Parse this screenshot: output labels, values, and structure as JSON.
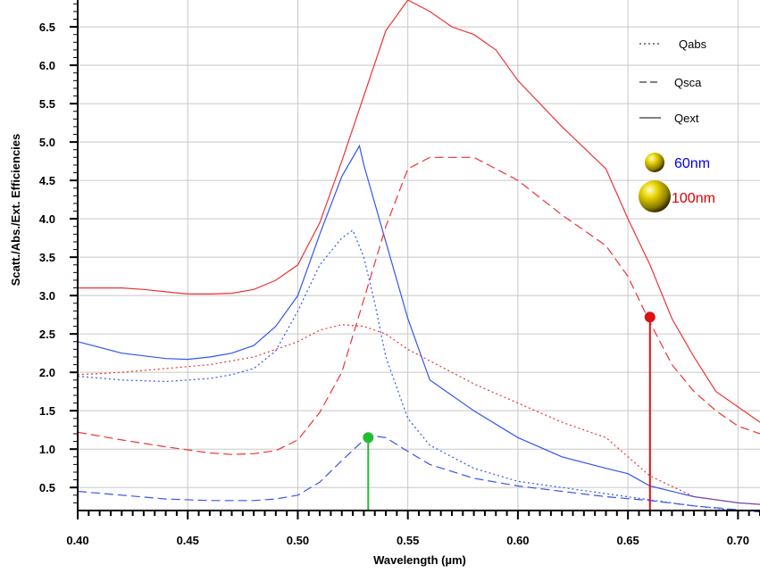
{
  "chart_data": {
    "type": "line",
    "title": "",
    "xlabel": "Wavelength (µm)",
    "ylabel": "Scatt./Abs./Ext. Efficiencies",
    "xlim": [
      0.4,
      0.71
    ],
    "ylim": [
      0.2,
      6.85
    ],
    "x_ticks": [
      "0.40",
      "0.45",
      "0.50",
      "0.55",
      "0.60",
      "0.65",
      "0.70"
    ],
    "y_ticks": [
      "0.5",
      "1.0",
      "1.5",
      "2.0",
      "2.5",
      "3.0",
      "3.5",
      "4.0",
      "4.5",
      "5.0",
      "5.5",
      "6.0",
      "6.5"
    ],
    "grid": true,
    "legend": {
      "position": "top-right",
      "line_entries": [
        {
          "label": "Qabs",
          "style": "dotted"
        },
        {
          "label": "Qsca",
          "style": "dashed"
        },
        {
          "label": "Qext",
          "style": "solid"
        }
      ],
      "size_entries": [
        {
          "label": "60nm",
          "color": "#0000ee"
        },
        {
          "label": "100nm",
          "color": "#dd0000"
        }
      ]
    },
    "series": [
      {
        "name": "Qabs",
        "size": "60nm",
        "color": "#3355ee",
        "style": "dotted",
        "x": [
          0.4,
          0.42,
          0.44,
          0.46,
          0.47,
          0.48,
          0.49,
          0.5,
          0.51,
          0.52,
          0.525,
          0.53,
          0.535,
          0.54,
          0.55,
          0.56,
          0.58,
          0.6,
          0.62,
          0.64,
          0.66,
          0.68,
          0.7,
          0.71
        ],
        "y": [
          1.95,
          1.9,
          1.88,
          1.92,
          1.97,
          2.05,
          2.28,
          2.8,
          3.4,
          3.75,
          3.85,
          3.5,
          2.9,
          2.2,
          1.4,
          1.05,
          0.75,
          0.58,
          0.5,
          0.42,
          0.34,
          0.26,
          0.2,
          0.19
        ]
      },
      {
        "name": "Qsca",
        "size": "60nm",
        "color": "#3355ee",
        "style": "dashed",
        "x": [
          0.4,
          0.42,
          0.44,
          0.46,
          0.47,
          0.48,
          0.49,
          0.5,
          0.51,
          0.52,
          0.53,
          0.535,
          0.54,
          0.55,
          0.56,
          0.58,
          0.6,
          0.62,
          0.64,
          0.66,
          0.68,
          0.7,
          0.71
        ],
        "y": [
          0.45,
          0.4,
          0.35,
          0.33,
          0.33,
          0.33,
          0.35,
          0.4,
          0.57,
          0.85,
          1.12,
          1.17,
          1.15,
          0.97,
          0.8,
          0.62,
          0.52,
          0.45,
          0.38,
          0.33,
          0.26,
          0.21,
          0.18
        ]
      },
      {
        "name": "Qext",
        "size": "60nm",
        "color": "#3355ee",
        "style": "solid",
        "x": [
          0.4,
          0.42,
          0.44,
          0.45,
          0.46,
          0.47,
          0.48,
          0.49,
          0.5,
          0.51,
          0.52,
          0.528,
          0.53,
          0.54,
          0.55,
          0.56,
          0.58,
          0.6,
          0.62,
          0.64,
          0.65,
          0.66,
          0.68,
          0.7,
          0.71
        ],
        "y": [
          2.4,
          2.25,
          2.18,
          2.17,
          2.2,
          2.25,
          2.35,
          2.6,
          3.0,
          3.8,
          4.55,
          4.95,
          4.7,
          3.7,
          2.7,
          1.9,
          1.5,
          1.15,
          0.9,
          0.75,
          0.68,
          0.52,
          0.38,
          0.3,
          0.28
        ]
      },
      {
        "name": "Qabs",
        "size": "100nm",
        "color": "#ee3333",
        "style": "dotted",
        "x": [
          0.4,
          0.42,
          0.44,
          0.46,
          0.48,
          0.5,
          0.51,
          0.52,
          0.53,
          0.54,
          0.55,
          0.56,
          0.58,
          0.6,
          0.62,
          0.64,
          0.66,
          0.68,
          0.7,
          0.71
        ],
        "y": [
          1.97,
          2.0,
          2.05,
          2.1,
          2.2,
          2.4,
          2.55,
          2.62,
          2.6,
          2.5,
          2.3,
          2.15,
          1.85,
          1.6,
          1.35,
          1.15,
          0.65,
          0.38,
          0.3,
          0.28
        ]
      },
      {
        "name": "Qsca",
        "size": "100nm",
        "color": "#ee3333",
        "style": "dashed",
        "x": [
          0.4,
          0.42,
          0.44,
          0.46,
          0.47,
          0.48,
          0.49,
          0.5,
          0.51,
          0.52,
          0.53,
          0.54,
          0.55,
          0.56,
          0.58,
          0.6,
          0.62,
          0.64,
          0.65,
          0.66,
          0.67,
          0.68,
          0.69,
          0.7,
          0.71
        ],
        "y": [
          1.22,
          1.12,
          1.03,
          0.95,
          0.93,
          0.94,
          0.98,
          1.12,
          1.48,
          2.0,
          2.95,
          3.9,
          4.65,
          4.8,
          4.8,
          4.5,
          4.05,
          3.65,
          3.25,
          2.65,
          2.1,
          1.75,
          1.5,
          1.3,
          1.2
        ]
      },
      {
        "name": "Qext",
        "size": "100nm",
        "color": "#ee3333",
        "style": "solid",
        "x": [
          0.4,
          0.42,
          0.43,
          0.44,
          0.45,
          0.46,
          0.47,
          0.48,
          0.49,
          0.5,
          0.51,
          0.52,
          0.53,
          0.54,
          0.55,
          0.56,
          0.57,
          0.58,
          0.59,
          0.6,
          0.62,
          0.64,
          0.65,
          0.66,
          0.67,
          0.68,
          0.69,
          0.7,
          0.71
        ],
        "y": [
          3.1,
          3.1,
          3.08,
          3.05,
          3.02,
          3.02,
          3.03,
          3.08,
          3.2,
          3.4,
          3.95,
          4.75,
          5.6,
          6.45,
          6.85,
          6.7,
          6.5,
          6.4,
          6.2,
          5.8,
          5.2,
          4.65,
          4.0,
          3.4,
          2.7,
          2.2,
          1.75,
          1.55,
          1.35
        ]
      }
    ],
    "markers": [
      {
        "x": 0.532,
        "y": 1.15,
        "color": "#22bb33"
      },
      {
        "x": 0.66,
        "y": 2.72,
        "color": "#dd1111"
      }
    ]
  }
}
